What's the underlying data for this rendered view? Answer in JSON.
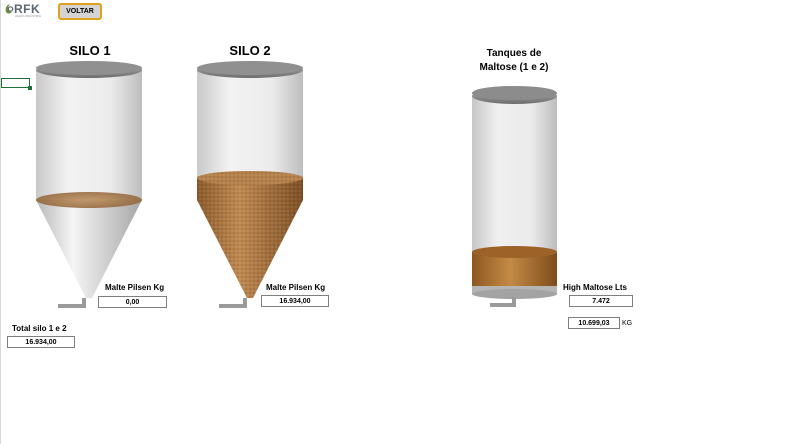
{
  "logo": {
    "text": "RFK",
    "tagline": "AGRO-INDÚSTRIA"
  },
  "toolbar": {
    "voltar_label": "VOLTAR"
  },
  "silo1": {
    "title": "SILO 1",
    "value_label": "Malte Pilsen Kg",
    "value": "0,00",
    "fill_level": 0
  },
  "silo2": {
    "title": "SILO 2",
    "value_label": "Malte Pilsen Kg",
    "value": "16.934,00",
    "fill_level": 0.45
  },
  "total": {
    "label": "Total silo 1 e 2",
    "value": "16.934,00"
  },
  "tanks": {
    "title_line1": "Tanques de",
    "title_line2": "Maltose (1 e 2)",
    "label": "High Maltose Lts",
    "liters": "7.472",
    "kg": "10.699,03",
    "kg_unit": "KG",
    "fill_level": 0.25
  },
  "colors": {
    "malt": "#b07c45",
    "maltose": "#a86b2a",
    "glass": "#e6e6e6",
    "lid": "#8c8c8c",
    "button_border": "#e0a020"
  }
}
